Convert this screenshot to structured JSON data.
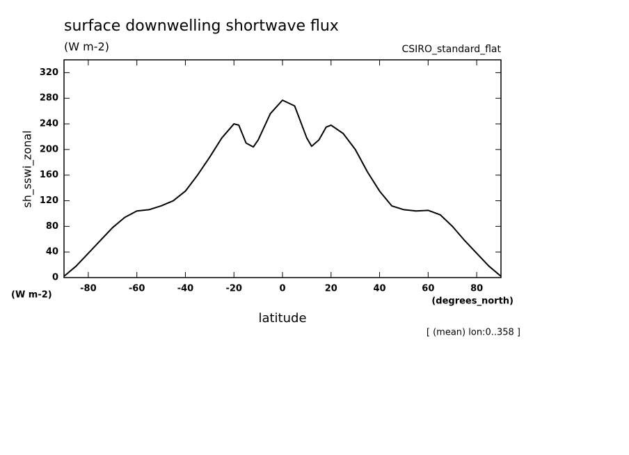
{
  "chart_data": {
    "type": "line",
    "title": "surface downwelling shortwave flux",
    "units": "(W m-2)",
    "source": "CSIRO_standard_flat",
    "ylabel": "sh_sswi_zonal",
    "yunits": "(W m-2)",
    "xunits": "(degrees_north)",
    "xlabel": "latitude",
    "note": "[ (mean) lon:0..358 ]",
    "x": [
      -90,
      -85,
      -80,
      -75,
      -70,
      -65,
      -60,
      -55,
      -50,
      -45,
      -40,
      -35,
      -30,
      -25,
      -20,
      -18,
      -15,
      -12,
      -10,
      -5,
      0,
      5,
      10,
      12,
      15,
      18,
      20,
      25,
      30,
      35,
      40,
      45,
      50,
      55,
      60,
      65,
      70,
      75,
      80,
      85,
      90
    ],
    "series": [
      {
        "name": "sh_sswi_zonal",
        "color": "#000000",
        "values": [
          2,
          18,
          38,
          58,
          78,
          94,
          104,
          106,
          112,
          120,
          135,
          160,
          188,
          218,
          240,
          238,
          210,
          204,
          215,
          256,
          277,
          268,
          218,
          205,
          215,
          235,
          238,
          225,
          200,
          165,
          135,
          112,
          106,
          104,
          105,
          98,
          80,
          58,
          38,
          18,
          2
        ]
      }
    ],
    "xlim": [
      -90,
      90
    ],
    "xticks": [
      -80,
      -60,
      -40,
      -20,
      0,
      20,
      40,
      60,
      80
    ],
    "ylim": [
      0,
      340
    ],
    "yticks": [
      0,
      40,
      80,
      120,
      160,
      200,
      240,
      280,
      320
    ]
  }
}
